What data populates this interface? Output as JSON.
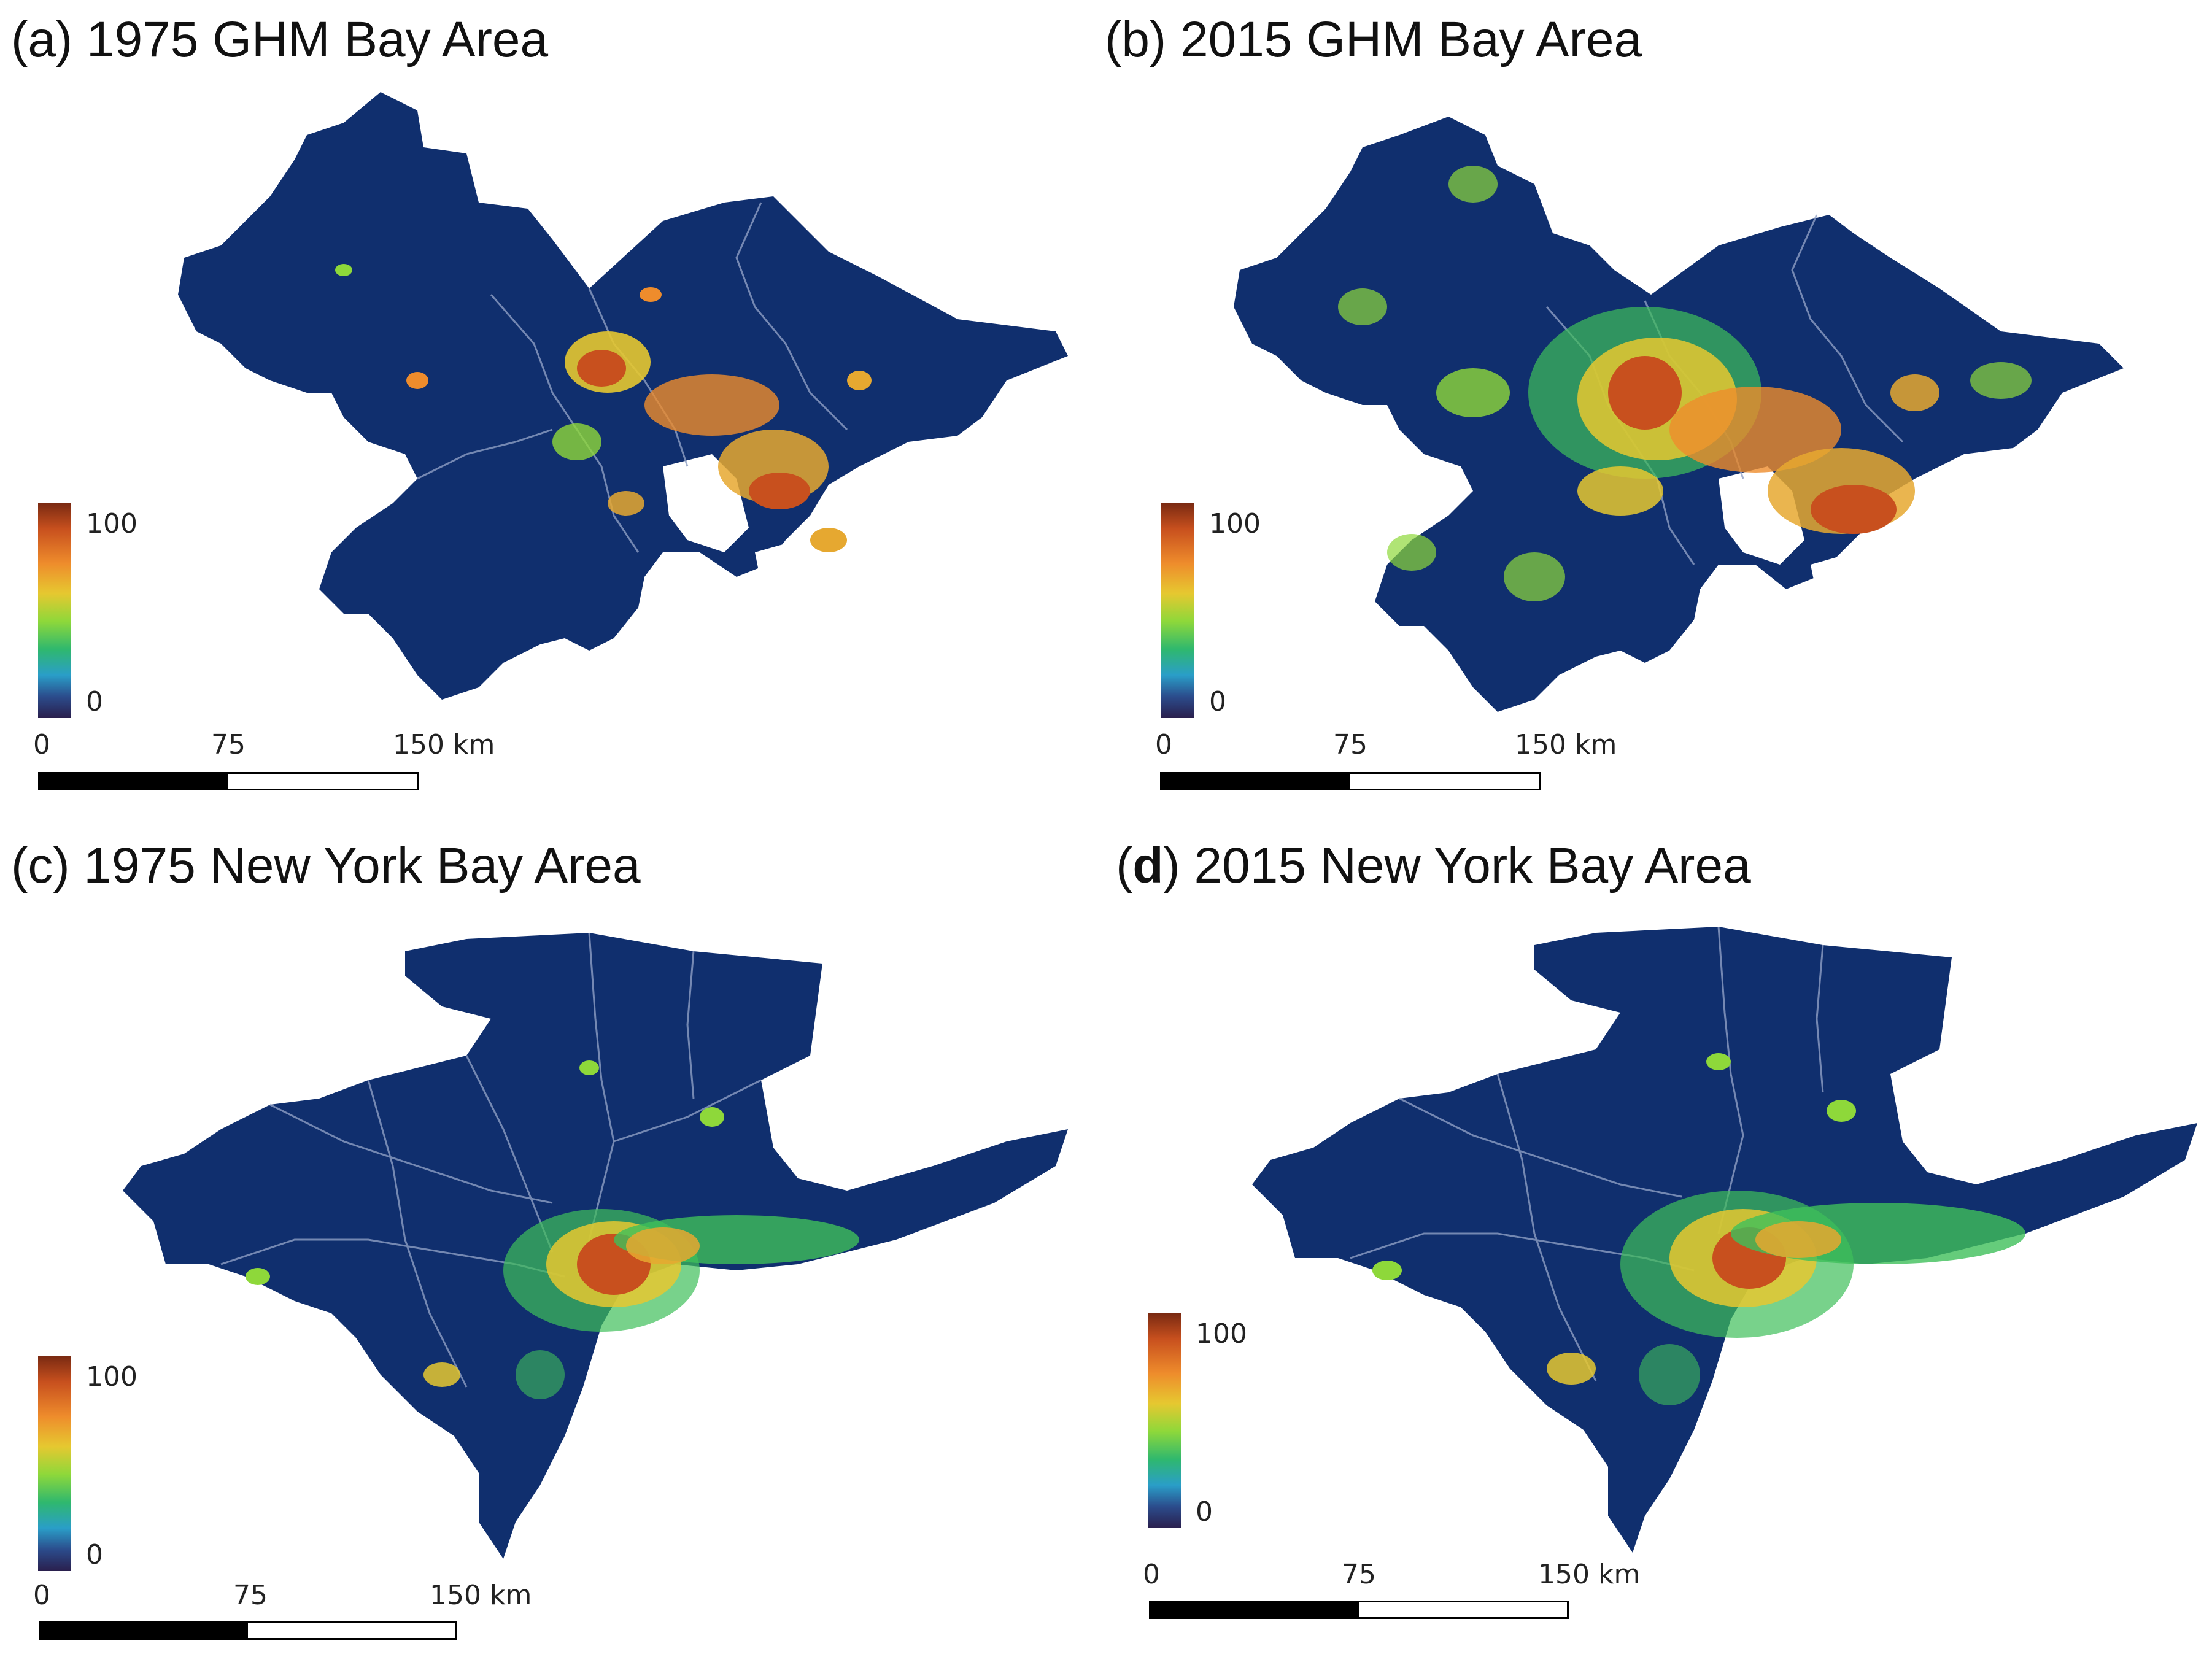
{
  "panels": [
    {
      "id": "a",
      "open": "(",
      "letter": "a",
      "close": ")",
      "title": "1975 GHM Bay Area",
      "letter_bold": false
    },
    {
      "id": "b",
      "open": "(",
      "letter": "b",
      "close": ")",
      "title": "2015 GHM Bay Area",
      "letter_bold": false
    },
    {
      "id": "c",
      "open": "(",
      "letter": "c",
      "close": ")",
      "title": "1975 New York Bay Area",
      "letter_bold": false
    },
    {
      "id": "d",
      "open": "(",
      "letter": "d",
      "close": ")",
      "title": "2015 New York Bay Area",
      "letter_bold": true
    }
  ],
  "legend": {
    "max_label": "100",
    "min_label": "0"
  },
  "scalebar": {
    "tick0": "0",
    "tick1": "75",
    "tick2": "150 km"
  },
  "colors": {
    "background": "#102f6e",
    "water": "#ffffff",
    "boundary": "#8e9fc4",
    "high": "#c8501e",
    "mid": "#e6a830",
    "low": "#3fbf5a"
  }
}
